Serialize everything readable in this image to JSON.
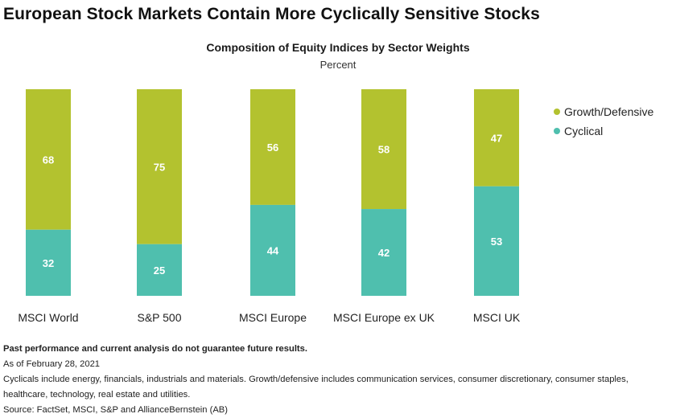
{
  "headline": "European Stock Markets Contain More Cyclically Sensitive Stocks",
  "colors": {
    "growth_defensive": "#b3c22f",
    "cyclical": "#4fbfae",
    "label_text": "#ffffff"
  },
  "legend": [
    {
      "name": "Growth/Defensive",
      "color": "#b3c22f"
    },
    {
      "name": "Cyclical",
      "color": "#4fbfae"
    }
  ],
  "chart_data": {
    "type": "bar",
    "stacked": true,
    "title": "Composition of Equity Indices by Sector Weights",
    "subtitle": "Percent",
    "categories": [
      "MSCI World",
      "S&P 500",
      "MSCI Europe",
      "MSCI Europe ex UK",
      "MSCI UK"
    ],
    "series": [
      {
        "name": "Cyclical",
        "values": [
          32,
          25,
          44,
          42,
          53
        ]
      },
      {
        "name": "Growth/Defensive",
        "values": [
          68,
          75,
          56,
          58,
          47
        ]
      }
    ],
    "ylim": [
      0,
      100
    ],
    "grid": false,
    "legend_position": "right"
  },
  "notes": {
    "disclaimer": "Past performance and current analysis do not guarantee future results.",
    "as_of": "As of February 28, 2021",
    "definition": "Cyclicals include energy, financials, industrials and materials. Growth/defensive includes communication services, consumer discretionary, consumer staples, healthcare, technology, real estate and utilities.",
    "source": "Source: FactSet, MSCI, S&P and AllianceBernstein (AB)"
  }
}
